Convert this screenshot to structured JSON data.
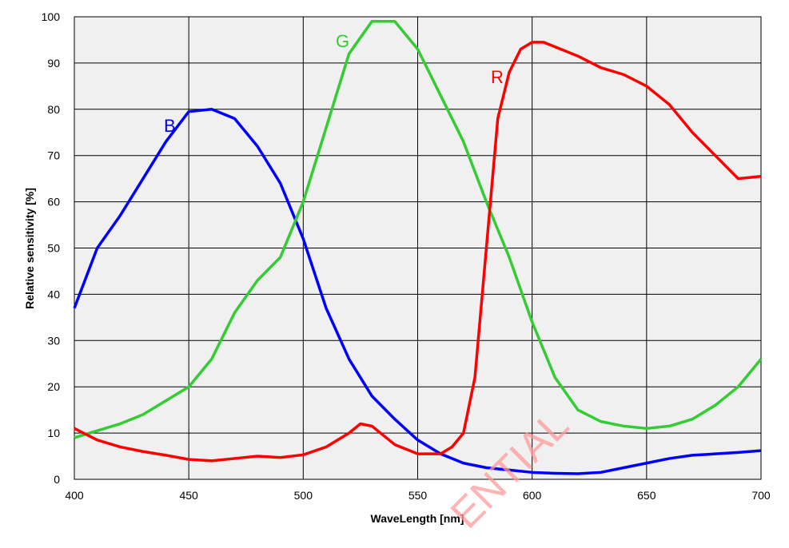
{
  "chart_data": {
    "type": "line",
    "xlabel": "WaveLength [nm]",
    "ylabel": "Relative sensitivity [%]",
    "xlim": [
      400,
      700
    ],
    "xticks": [
      400,
      450,
      500,
      550,
      600,
      650,
      700
    ],
    "ylim": [
      0,
      100
    ],
    "yticks": [
      0,
      10,
      20,
      30,
      40,
      50,
      60,
      70,
      80,
      90,
      100
    ],
    "grid": true,
    "watermark": "ENTIAL",
    "series": [
      {
        "name": "B",
        "color": "#0000ff",
        "x": [
          400,
          410,
          420,
          430,
          440,
          450,
          460,
          470,
          480,
          490,
          500,
          510,
          520,
          530,
          540,
          550,
          560,
          570,
          580,
          590,
          600,
          610,
          620,
          630,
          640,
          650,
          660,
          670,
          680,
          690,
          700
        ],
        "values": [
          37,
          50,
          57,
          65,
          73,
          79.5,
          80,
          78,
          72,
          64,
          52,
          37,
          26,
          18,
          13,
          8.5,
          5.5,
          3.5,
          2.5,
          2,
          1.5,
          1.3,
          1.2,
          1.5,
          2.5,
          3.5,
          4.5,
          5.2,
          5.5,
          5.8,
          6.2
        ]
      },
      {
        "name": "G",
        "color": "#33cc33",
        "x": [
          400,
          410,
          420,
          430,
          440,
          450,
          460,
          470,
          480,
          490,
          500,
          510,
          520,
          530,
          540,
          550,
          560,
          570,
          580,
          590,
          600,
          610,
          620,
          630,
          640,
          650,
          660,
          670,
          680,
          690,
          700
        ],
        "values": [
          9,
          10.5,
          12,
          14,
          17,
          20,
          26,
          36,
          43,
          48,
          60,
          76,
          92,
          99,
          99,
          93,
          83,
          73,
          60,
          48,
          34,
          22,
          15,
          12.5,
          11.5,
          11,
          11.5,
          13,
          16,
          20,
          26
        ]
      },
      {
        "name": "R",
        "color": "#ff0000",
        "x": [
          400,
          410,
          420,
          430,
          440,
          450,
          460,
          470,
          480,
          490,
          500,
          510,
          520,
          525,
          530,
          540,
          550,
          560,
          565,
          570,
          575,
          580,
          585,
          590,
          595,
          600,
          605,
          610,
          620,
          630,
          640,
          650,
          660,
          670,
          680,
          690,
          700
        ],
        "values": [
          11,
          8.5,
          7,
          6,
          5.2,
          4.3,
          4,
          4.5,
          5,
          4.7,
          5.3,
          7,
          10,
          12,
          11.5,
          7.5,
          5.5,
          5.5,
          7,
          10,
          22,
          50,
          78,
          88,
          93,
          94.5,
          94.5,
          93.5,
          91.5,
          89,
          87.5,
          85,
          81,
          75,
          70,
          65,
          65.5
        ]
      }
    ]
  }
}
